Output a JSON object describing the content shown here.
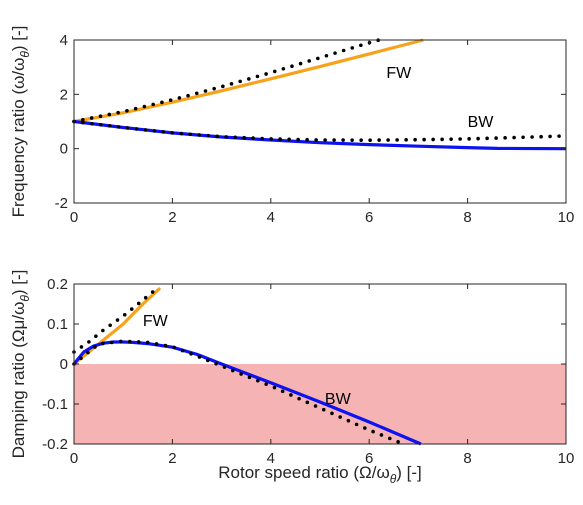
{
  "chart_data": [
    {
      "type": "line",
      "ylabel": "Frequency ratio (ω/ω_θ) [-]",
      "ylabel_main": "Frequency ratio (ω/ω",
      "ylabel_sub": "θ",
      "ylabel_tail": ") [-]",
      "xlim": [
        0,
        10
      ],
      "ylim": [
        -2,
        4
      ],
      "xticks": [
        "0",
        "2",
        "4",
        "6",
        "8",
        "10"
      ],
      "yticks": [
        "-2",
        "0",
        "2",
        "4"
      ],
      "grid": false,
      "annotations": [
        {
          "text": "FW",
          "x": 6.35,
          "y": 2.6
        },
        {
          "text": "BW",
          "x": 8.0,
          "y": 0.8
        }
      ],
      "series": [
        {
          "style": "solid",
          "color": "#f7a21b",
          "x": [
            0,
            1,
            2,
            3,
            4,
            5,
            6,
            7.1
          ],
          "y": [
            1.0,
            1.32,
            1.71,
            2.13,
            2.57,
            3.02,
            3.49,
            4.0
          ]
        },
        {
          "style": "dotted",
          "color": "#000000",
          "x": [
            0,
            1,
            2,
            3,
            4,
            5,
            6,
            6.2
          ],
          "y": [
            1.0,
            1.36,
            1.8,
            2.28,
            2.8,
            3.35,
            3.9,
            4.0
          ]
        },
        {
          "style": "solid",
          "color": "#0c12f0",
          "x": [
            0,
            1,
            2,
            3,
            4,
            5,
            6,
            7,
            8,
            8.6,
            10
          ],
          "y": [
            1.0,
            0.78,
            0.58,
            0.43,
            0.32,
            0.22,
            0.15,
            0.09,
            0.04,
            0.01,
            0.0
          ]
        },
        {
          "style": "dotted",
          "color": "#000000",
          "x": [
            0,
            1,
            2,
            3,
            4,
            5,
            6,
            7,
            8,
            9,
            10
          ],
          "y": [
            1.0,
            0.78,
            0.58,
            0.44,
            0.36,
            0.32,
            0.31,
            0.33,
            0.36,
            0.41,
            0.47
          ]
        }
      ]
    },
    {
      "type": "line",
      "xlabel": "Rotor speed ratio (Ω/ω_θ) [-]",
      "xlabel_main": "Rotor speed ratio (Ω/ω",
      "xlabel_sub": "θ",
      "xlabel_tail": ") [-]",
      "ylabel": "Damping ratio (Ωμ/ω_θ) [-]",
      "ylabel_main": "Damping ratio (Ωμ/ω",
      "ylabel_sub": "θ",
      "ylabel_tail": ") [-]",
      "xlim": [
        0,
        10
      ],
      "ylim": [
        -0.2,
        0.2
      ],
      "xticks": [
        "0",
        "2",
        "4",
        "6",
        "8",
        "10"
      ],
      "yticks": [
        "-0.2",
        "-0.1",
        "0",
        "0.1",
        "0.2"
      ],
      "grid": false,
      "shaded_region": {
        "y_from": -0.2,
        "y_to": 0,
        "color": "#f6b3b3"
      },
      "annotations": [
        {
          "text": "FW",
          "x": 1.4,
          "y": 0.095
        },
        {
          "text": "BW",
          "x": 5.1,
          "y": -0.1
        }
      ],
      "series": [
        {
          "style": "solid",
          "color": "#f7a21b",
          "x": [
            0,
            0.3,
            0.6,
            1.0,
            1.4,
            1.75
          ],
          "y": [
            0.0,
            0.03,
            0.06,
            0.1,
            0.15,
            0.19
          ]
        },
        {
          "style": "dotted",
          "color": "#000000",
          "x": [
            0,
            0.3,
            0.6,
            1.0,
            1.3,
            1.6
          ],
          "y": [
            0.03,
            0.055,
            0.085,
            0.12,
            0.15,
            0.18
          ]
        },
        {
          "style": "solid",
          "color": "#0c12f0",
          "x": [
            0,
            0.2,
            0.4,
            0.6,
            0.8,
            1.0,
            1.2,
            1.5,
            2.0,
            2.5,
            3.0,
            4.0,
            5.0,
            6.0,
            7.05
          ],
          "y": [
            0.0,
            0.03,
            0.045,
            0.052,
            0.055,
            0.055,
            0.054,
            0.051,
            0.042,
            0.024,
            0.0,
            -0.047,
            -0.095,
            -0.145,
            -0.2
          ]
        },
        {
          "style": "dotted",
          "color": "#000000",
          "x": [
            0,
            0.5,
            1.0,
            1.5,
            2.0,
            2.5,
            3.0,
            4.0,
            5.0,
            6.0,
            6.7
          ],
          "y": [
            0.0,
            0.05,
            0.057,
            0.054,
            0.043,
            0.02,
            -0.005,
            -0.055,
            -0.11,
            -0.165,
            -0.2
          ]
        }
      ]
    }
  ]
}
